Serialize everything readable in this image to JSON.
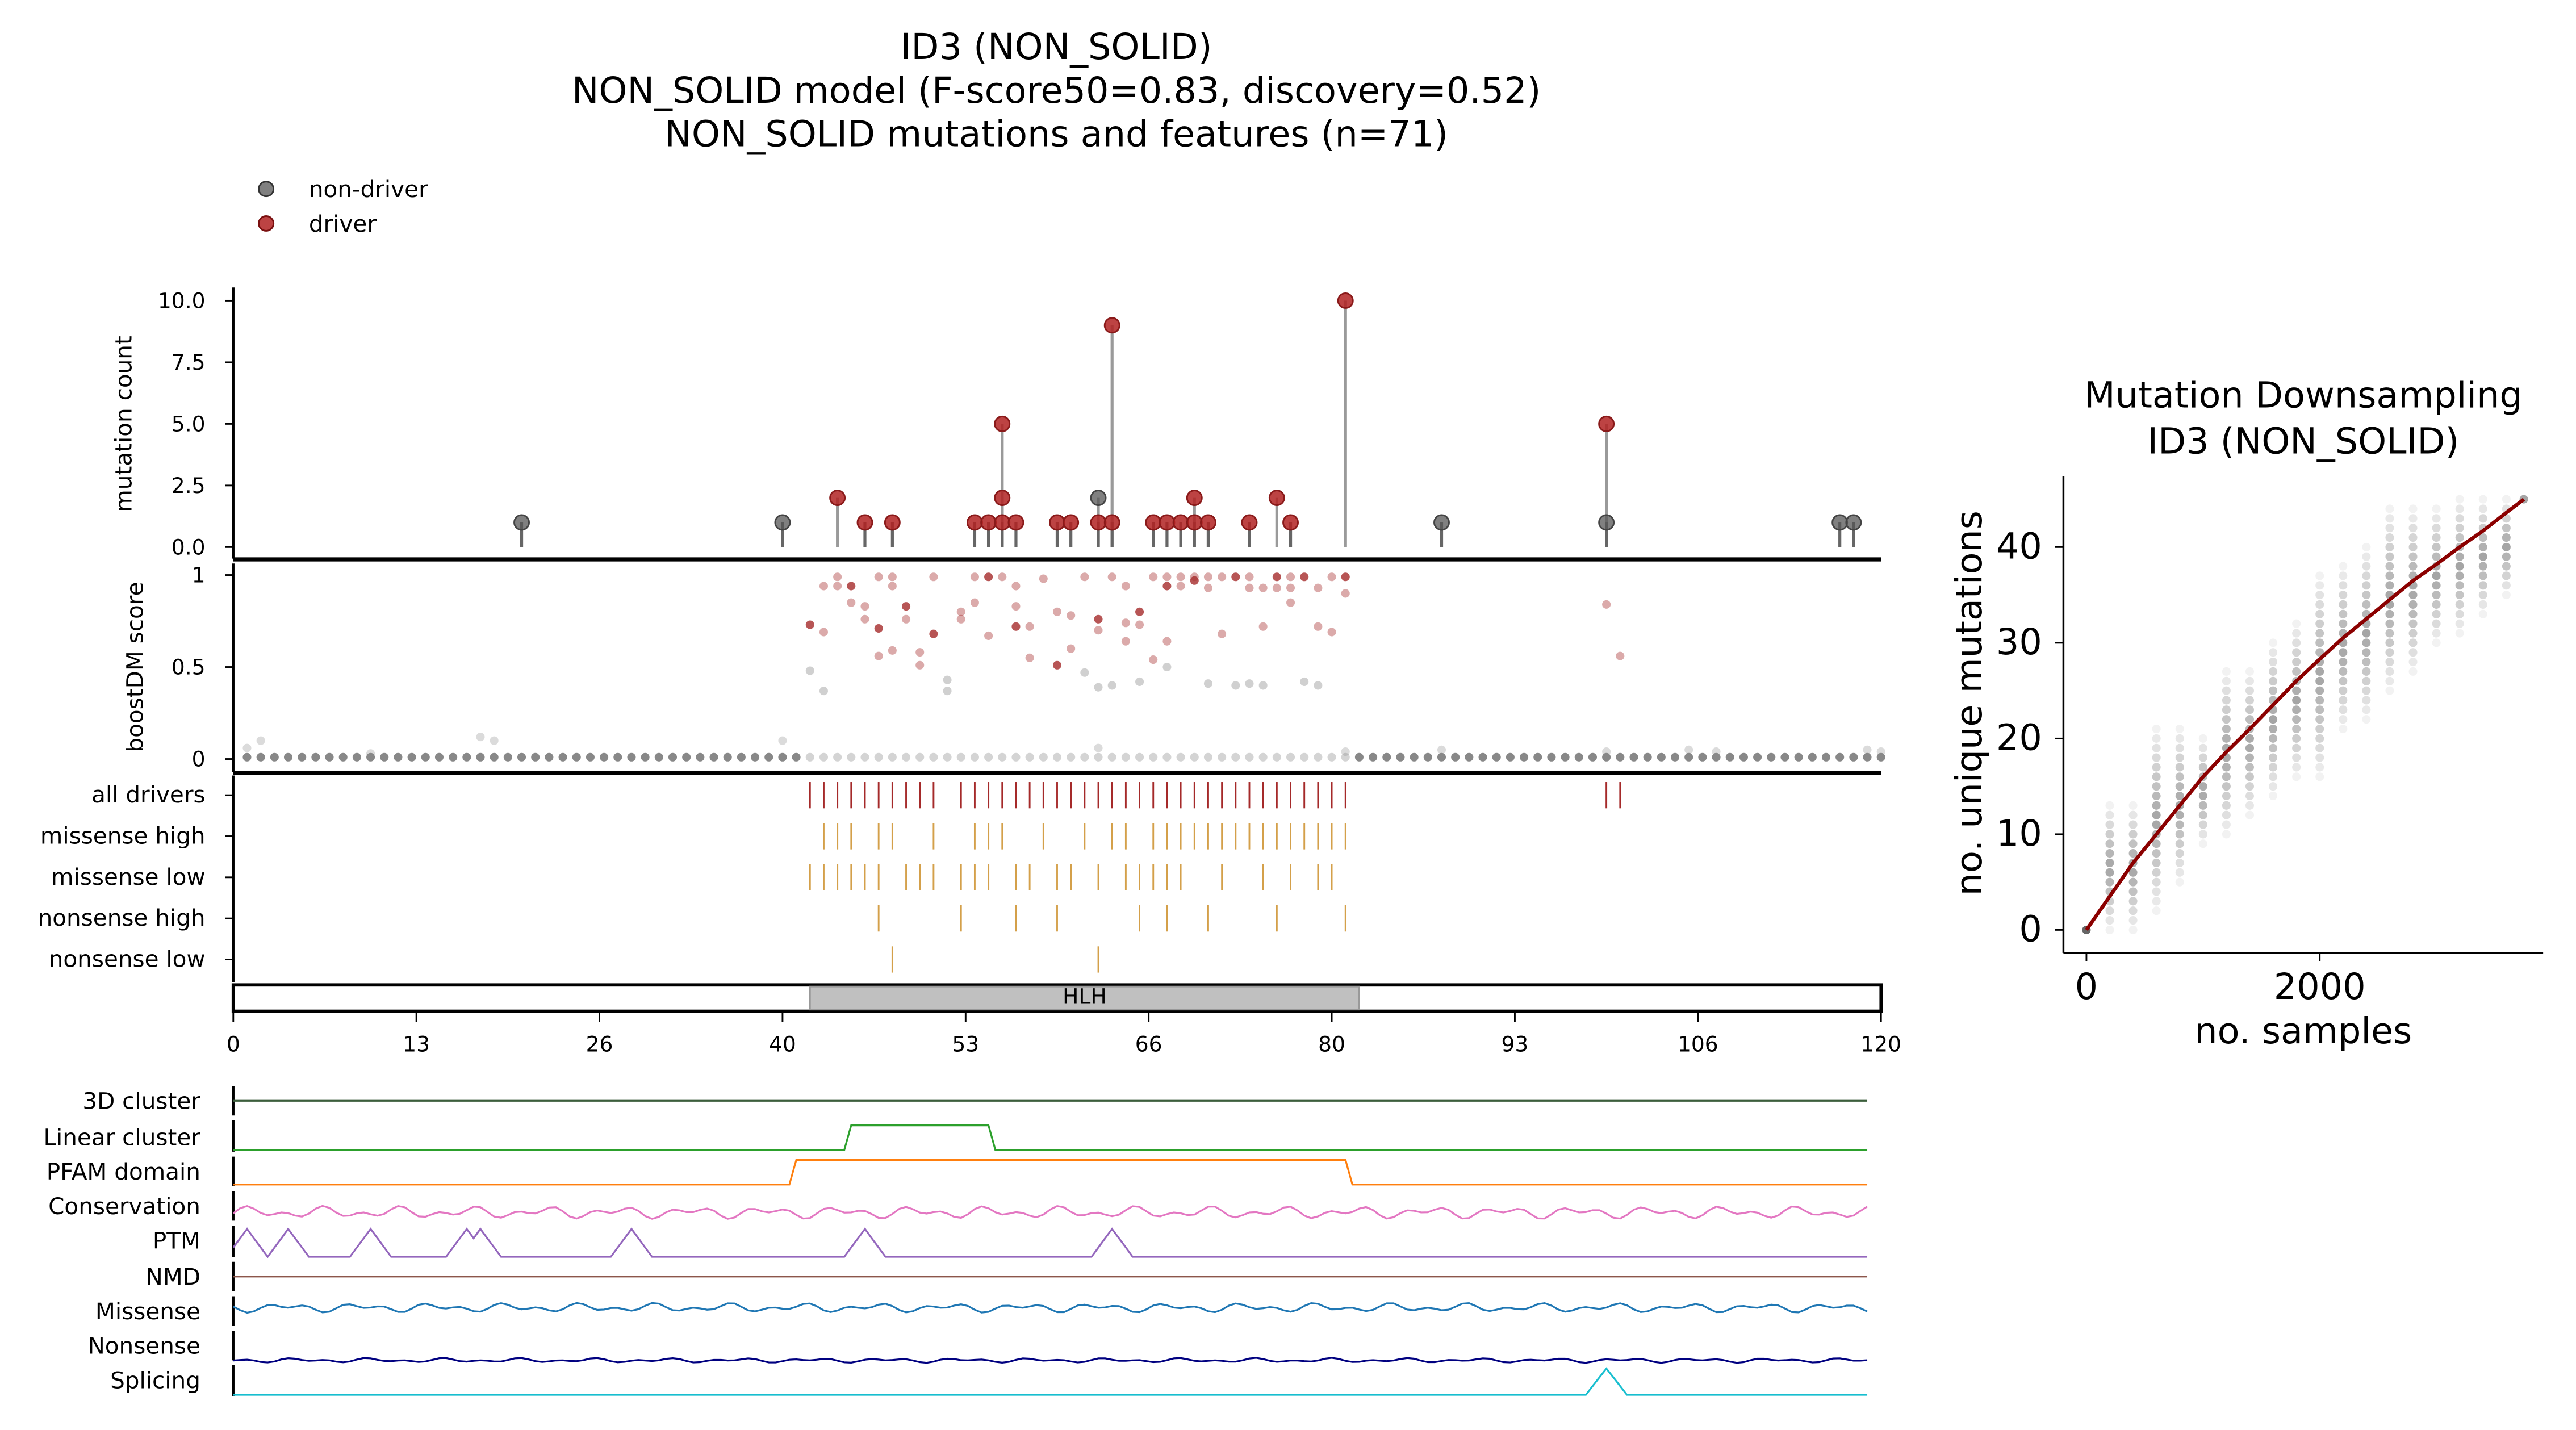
{
  "chart_data": [
    {
      "type": "scatter",
      "title": [
        "ID3 (NON_SOLID)",
        "NON_SOLID model (F-score50=0.83, discovery=0.52)",
        "NON_SOLID mutations and features (n=71)"
      ],
      "legend": {
        "placement": "top-left",
        "entries": [
          "non-driver",
          "driver"
        ]
      },
      "colors": {
        "driver": "#b22222",
        "non_driver": "#555555",
        "stem": "#9a9a9a"
      },
      "xlim": [
        0,
        120
      ],
      "xticks": [
        "0",
        "13",
        "26",
        "40",
        "53",
        "66",
        "80",
        "93",
        "106",
        "120"
      ],
      "lollipop": {
        "ylabel": "mutation count",
        "ylim": [
          0,
          10
        ],
        "yticks": [
          "0.0",
          "2.5",
          "5.0",
          "7.5",
          "10.0"
        ],
        "points": [
          [
            21,
            1,
            0
          ],
          [
            40,
            1,
            0
          ],
          [
            44,
            2,
            1
          ],
          [
            46,
            1,
            1
          ],
          [
            48,
            1,
            1
          ],
          [
            54,
            1,
            1
          ],
          [
            55,
            1,
            1
          ],
          [
            56,
            5,
            1
          ],
          [
            56,
            2,
            1
          ],
          [
            56,
            1,
            1
          ],
          [
            57,
            1,
            1
          ],
          [
            60,
            1,
            1
          ],
          [
            61,
            1,
            1
          ],
          [
            63,
            2,
            0
          ],
          [
            63,
            1,
            1
          ],
          [
            64,
            9,
            1
          ],
          [
            64,
            1,
            1
          ],
          [
            67,
            1,
            1
          ],
          [
            68,
            1,
            1
          ],
          [
            69,
            1,
            1
          ],
          [
            70,
            2,
            1
          ],
          [
            70,
            1,
            1
          ],
          [
            71,
            1,
            1
          ],
          [
            74,
            1,
            1
          ],
          [
            76,
            2,
            1
          ],
          [
            77,
            1,
            1
          ],
          [
            81,
            10,
            1
          ],
          [
            88,
            1,
            0
          ],
          [
            100,
            5,
            1
          ],
          [
            100,
            1,
            0
          ],
          [
            117,
            1,
            0
          ],
          [
            118,
            1,
            0
          ]
        ]
      },
      "boostdm": {
        "ylabel": "boostDM score",
        "ylim": [
          0,
          1
        ],
        "yticks": [
          "0",
          "0.5",
          "1"
        ],
        "high_points": [
          [
            42,
            0.73
          ],
          [
            43,
            0.69
          ],
          [
            43,
            0.94
          ],
          [
            44,
            0.99
          ],
          [
            44,
            0.94
          ],
          [
            45,
            0.94
          ],
          [
            45,
            0.85
          ],
          [
            46,
            0.83
          ],
          [
            46,
            0.76
          ],
          [
            47,
            0.99
          ],
          [
            47,
            0.71
          ],
          [
            47,
            0.56
          ],
          [
            48,
            0.99
          ],
          [
            48,
            0.94
          ],
          [
            48,
            0.59
          ],
          [
            49,
            0.83
          ],
          [
            49,
            0.76
          ],
          [
            50,
            0.58
          ],
          [
            50,
            0.51
          ],
          [
            51,
            0.99
          ],
          [
            51,
            0.68
          ],
          [
            53,
            0.8
          ],
          [
            53,
            0.76
          ],
          [
            54,
            0.99
          ],
          [
            54,
            0.85
          ],
          [
            55,
            0.99
          ],
          [
            55,
            0.67
          ],
          [
            56,
            0.99
          ],
          [
            57,
            0.94
          ],
          [
            57,
            0.83
          ],
          [
            57,
            0.72
          ],
          [
            58,
            0.72
          ],
          [
            58,
            0.55
          ],
          [
            59,
            0.98
          ],
          [
            60,
            0.8
          ],
          [
            60,
            0.51
          ],
          [
            61,
            0.78
          ],
          [
            61,
            0.6
          ],
          [
            62,
            0.99
          ],
          [
            63,
            0.7
          ],
          [
            63,
            0.76
          ],
          [
            64,
            0.99
          ],
          [
            65,
            0.94
          ],
          [
            65,
            0.74
          ],
          [
            65,
            0.64
          ],
          [
            66,
            0.8
          ],
          [
            66,
            0.73
          ],
          [
            67,
            0.99
          ],
          [
            67,
            0.54
          ],
          [
            68,
            0.99
          ],
          [
            68,
            0.94
          ],
          [
            68,
            0.64
          ],
          [
            69,
            0.99
          ],
          [
            69,
            0.94
          ],
          [
            70,
            0.99
          ],
          [
            70,
            0.97
          ],
          [
            71,
            0.99
          ],
          [
            71,
            0.93
          ],
          [
            72,
            0.99
          ],
          [
            72,
            0.68
          ],
          [
            73,
            0.99
          ],
          [
            74,
            0.99
          ],
          [
            74,
            0.93
          ],
          [
            75,
            0.93
          ],
          [
            75,
            0.72
          ],
          [
            76,
            0.99
          ],
          [
            76,
            0.93
          ],
          [
            77,
            0.99
          ],
          [
            77,
            0.93
          ],
          [
            77,
            0.85
          ],
          [
            78,
            0.99
          ],
          [
            79,
            0.93
          ],
          [
            79,
            0.72
          ],
          [
            80,
            0.99
          ],
          [
            80,
            0.69
          ],
          [
            81,
            0.99
          ],
          [
            81,
            0.9
          ],
          [
            100,
            0.84
          ],
          [
            101,
            0.56
          ]
        ],
        "mid_points": [
          [
            42,
            0.48
          ],
          [
            43,
            0.37
          ],
          [
            52,
            0.43
          ],
          [
            52,
            0.37
          ],
          [
            62,
            0.47
          ],
          [
            63,
            0.39
          ],
          [
            64,
            0.4
          ],
          [
            66,
            0.42
          ],
          [
            68,
            0.5
          ],
          [
            71,
            0.41
          ],
          [
            73,
            0.4
          ],
          [
            74,
            0.41
          ],
          [
            75,
            0.4
          ],
          [
            78,
            0.42
          ],
          [
            79,
            0.4
          ]
        ],
        "baseline_score": 0.01
      },
      "tracks": [
        {
          "label": "all drivers",
          "color": "#a52a2a",
          "positions": [
            42,
            43,
            44,
            45,
            46,
            47,
            48,
            49,
            50,
            51,
            53,
            54,
            55,
            56,
            57,
            58,
            59,
            60,
            61,
            62,
            63,
            64,
            65,
            66,
            67,
            68,
            69,
            70,
            71,
            72,
            73,
            74,
            75,
            76,
            77,
            78,
            79,
            80,
            81,
            100,
            101
          ]
        },
        {
          "label": "missense high",
          "color": "#d4a04a",
          "positions": [
            43,
            44,
            45,
            47,
            48,
            51,
            54,
            55,
            56,
            59,
            62,
            64,
            65,
            67,
            68,
            69,
            70,
            71,
            72,
            73,
            74,
            75,
            76,
            77,
            78,
            79,
            80,
            81
          ]
        },
        {
          "label": "missense low",
          "color": "#d4a04a",
          "positions": [
            42,
            43,
            44,
            45,
            46,
            47,
            49,
            50,
            51,
            53,
            54,
            55,
            57,
            58,
            60,
            61,
            63,
            65,
            66,
            67,
            68,
            69,
            72,
            75,
            77,
            79,
            80
          ]
        },
        {
          "label": "nonsense high",
          "color": "#d4a04a",
          "positions": [
            47,
            53,
            57,
            60,
            66,
            68,
            71,
            76,
            81
          ]
        },
        {
          "label": "nonsense low",
          "color": "#d4a04a",
          "positions": [
            48,
            63
          ]
        }
      ],
      "domains": [
        {
          "label": "HLH",
          "start": 42,
          "end": 82
        }
      ],
      "features": [
        {
          "label": "3D cluster",
          "color": "#3b5e3b",
          "kind": "flat"
        },
        {
          "label": "Linear cluster",
          "color": "#2ca02c",
          "kind": "range",
          "range": [
            45,
            55
          ]
        },
        {
          "label": "PFAM domain",
          "color": "#ff7f0e",
          "kind": "range",
          "range": [
            41,
            81
          ]
        },
        {
          "label": "Conservation",
          "color": "#e377c2",
          "kind": "wave"
        },
        {
          "label": "PTM",
          "color": "#9467bd",
          "kind": "peaks",
          "peaks": [
            1,
            4,
            10,
            17,
            18,
            29,
            46,
            64
          ]
        },
        {
          "label": "NMD",
          "color": "#8c564b",
          "kind": "flat"
        },
        {
          "label": "Missense",
          "color": "#1f77b4",
          "kind": "wave"
        },
        {
          "label": "Nonsense",
          "color": "#000080",
          "kind": "wave"
        },
        {
          "label": "Splicing",
          "color": "#17becf",
          "kind": "peaks",
          "peaks": [
            100
          ]
        }
      ]
    },
    {
      "type": "scatter",
      "title": [
        "Mutation Downsampling",
        "ID3 (NON_SOLID)"
      ],
      "xlabel": "no. samples",
      "ylabel": "no. unique mutations",
      "xticks": [
        "0",
        "2000"
      ],
      "yticks": [
        "0",
        "10",
        "20",
        "30",
        "40"
      ],
      "xlim": [
        0,
        3750
      ],
      "ylim": [
        0,
        45
      ],
      "line_color": "#8b0000",
      "columns": [
        [
          200,
          0,
          13
        ],
        [
          400,
          0,
          13
        ],
        [
          600,
          2,
          21
        ],
        [
          800,
          5,
          21
        ],
        [
          1000,
          9,
          20
        ],
        [
          1200,
          10,
          27
        ],
        [
          1400,
          12,
          27
        ],
        [
          1600,
          14,
          30
        ],
        [
          1800,
          16,
          32
        ],
        [
          2000,
          16,
          37
        ],
        [
          2200,
          21,
          38
        ],
        [
          2400,
          22,
          40
        ],
        [
          2600,
          25,
          44
        ],
        [
          2800,
          27,
          44
        ],
        [
          3000,
          30,
          44
        ],
        [
          3200,
          31,
          45
        ],
        [
          3400,
          33,
          45
        ],
        [
          3600,
          35,
          45
        ],
        [
          3750,
          45,
          45
        ]
      ],
      "curve": [
        [
          0,
          0
        ],
        [
          200,
          3.5
        ],
        [
          400,
          7
        ],
        [
          600,
          10
        ],
        [
          800,
          13
        ],
        [
          1000,
          16
        ],
        [
          1200,
          18.6
        ],
        [
          1400,
          21
        ],
        [
          1600,
          23.5
        ],
        [
          1800,
          26
        ],
        [
          2000,
          28.3
        ],
        [
          2200,
          30.5
        ],
        [
          2400,
          32.5
        ],
        [
          2600,
          34.5
        ],
        [
          2800,
          36.5
        ],
        [
          3000,
          38.2
        ],
        [
          3200,
          40
        ],
        [
          3400,
          41.7
        ],
        [
          3600,
          43.6
        ],
        [
          3750,
          45
        ]
      ]
    }
  ]
}
